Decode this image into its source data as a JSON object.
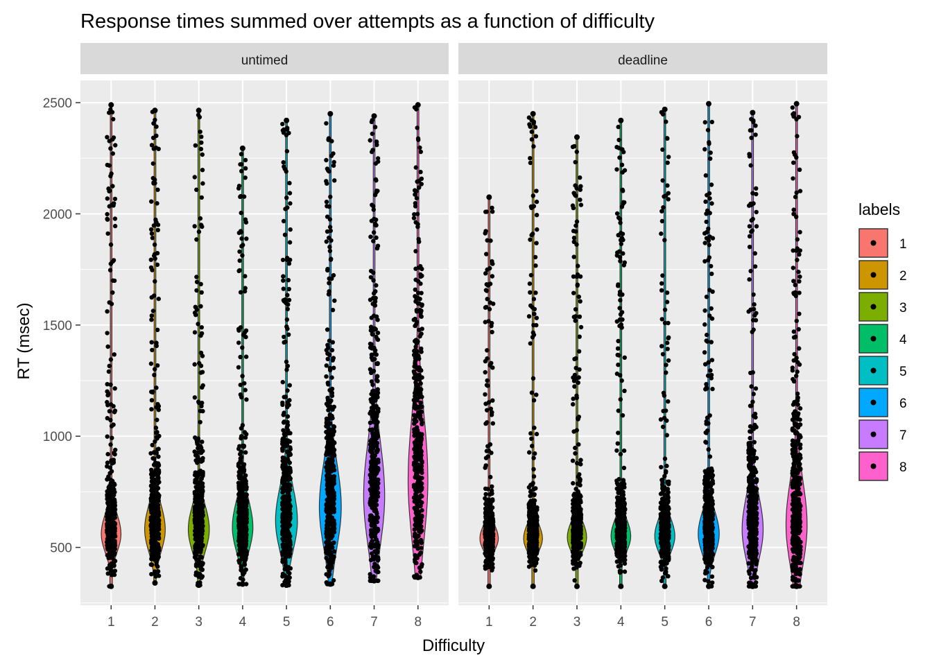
{
  "chart_data": {
    "type": "violin",
    "title": "Response times summed over attempts as a function of difficulty",
    "xlabel": "Difficulty",
    "ylabel": "RT (msec)",
    "x_ticks": [
      "1",
      "2",
      "3",
      "4",
      "5",
      "6",
      "7",
      "8"
    ],
    "y_ticks": [
      500,
      1000,
      1500,
      2000,
      2500
    ],
    "ylim": [
      240,
      2600
    ],
    "grid": true,
    "legend": {
      "title": "labels",
      "position": "right",
      "entries": [
        "1",
        "2",
        "3",
        "4",
        "5",
        "6",
        "7",
        "8"
      ]
    },
    "colors": {
      "1": "#F8766D",
      "2": "#CD9600",
      "3": "#7CAE00",
      "4": "#00BE67",
      "5": "#00BFC4",
      "6": "#00A9FF",
      "7": "#C77CFF",
      "8": "#FF61CC"
    },
    "panels": [
      {
        "name": "untimed",
        "violins": [
          {
            "difficulty": "1",
            "min": 325,
            "max": 2490,
            "median": 560,
            "mode": 560,
            "width": 0.45,
            "sigma": 90
          },
          {
            "difficulty": "2",
            "min": 340,
            "max": 2465,
            "median": 580,
            "mode": 580,
            "width": 0.47,
            "sigma": 110
          },
          {
            "difficulty": "3",
            "min": 330,
            "max": 2465,
            "median": 580,
            "mode": 580,
            "width": 0.48,
            "sigma": 110
          },
          {
            "difficulty": "4",
            "min": 335,
            "max": 2295,
            "median": 590,
            "mode": 590,
            "width": 0.47,
            "sigma": 120
          },
          {
            "difficulty": "5",
            "min": 330,
            "max": 2420,
            "median": 620,
            "mode": 620,
            "width": 0.5,
            "sigma": 150
          },
          {
            "difficulty": "6",
            "min": 335,
            "max": 2450,
            "median": 680,
            "mode": 680,
            "width": 0.5,
            "sigma": 200
          },
          {
            "difficulty": "7",
            "min": 350,
            "max": 2440,
            "median": 730,
            "mode": 730,
            "width": 0.48,
            "sigma": 240
          },
          {
            "difficulty": "8",
            "min": 365,
            "max": 2490,
            "median": 820,
            "mode": 800,
            "width": 0.45,
            "sigma": 300
          }
        ]
      },
      {
        "name": "deadline",
        "violins": [
          {
            "difficulty": "1",
            "min": 325,
            "max": 2075,
            "median": 540,
            "mode": 540,
            "width": 0.42,
            "sigma": 60
          },
          {
            "difficulty": "2",
            "min": 325,
            "max": 2450,
            "median": 540,
            "mode": 540,
            "width": 0.43,
            "sigma": 65
          },
          {
            "difficulty": "3",
            "min": 325,
            "max": 2345,
            "median": 545,
            "mode": 545,
            "width": 0.44,
            "sigma": 70
          },
          {
            "difficulty": "4",
            "min": 325,
            "max": 2420,
            "median": 550,
            "mode": 550,
            "width": 0.45,
            "sigma": 75
          },
          {
            "difficulty": "5",
            "min": 325,
            "max": 2470,
            "median": 550,
            "mode": 550,
            "width": 0.46,
            "sigma": 80
          },
          {
            "difficulty": "6",
            "min": 325,
            "max": 2495,
            "median": 560,
            "mode": 560,
            "width": 0.48,
            "sigma": 100
          },
          {
            "difficulty": "7",
            "min": 325,
            "max": 2455,
            "median": 580,
            "mode": 580,
            "width": 0.48,
            "sigma": 150
          },
          {
            "difficulty": "8",
            "min": 325,
            "max": 2495,
            "median": 600,
            "mode": 600,
            "width": 0.48,
            "sigma": 200
          }
        ]
      }
    ]
  }
}
